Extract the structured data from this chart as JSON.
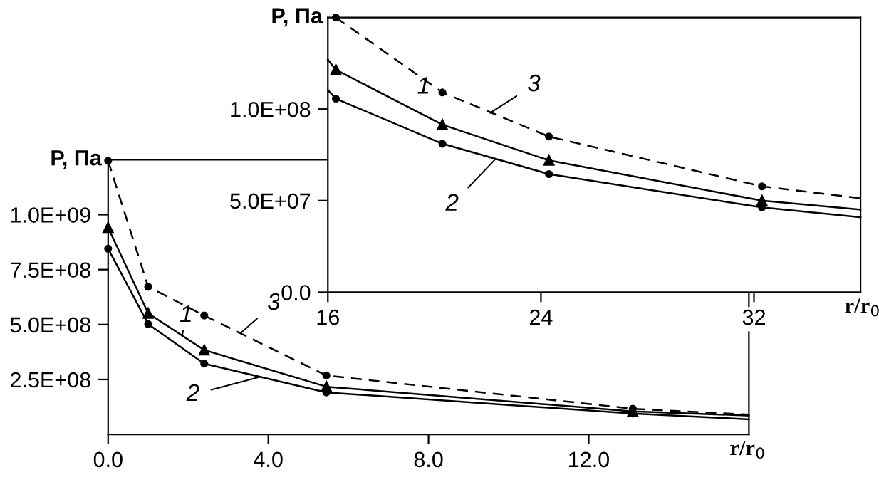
{
  "chart_data": [
    {
      "type": "line",
      "ylabel": "P, Па",
      "xlabel": "r/r$_{0}$",
      "x": [
        0,
        1,
        2.4,
        5.45,
        13.1,
        16
      ],
      "xlim": [
        0,
        16
      ],
      "xticks": [
        {
          "value": 0,
          "label": "0.0"
        },
        {
          "value": 4,
          "label": "4.0"
        },
        {
          "value": 8,
          "label": "8.0"
        },
        {
          "value": 12,
          "label": "12.0"
        }
      ],
      "ylim": [
        0,
        1250000000
      ],
      "yticks": [
        {
          "value": 250000000,
          "label": "2.5E+08"
        },
        {
          "value": 500000000,
          "label": "5.0E+08"
        },
        {
          "value": 750000000,
          "label": "7.5E+08"
        },
        {
          "value": 1000000000,
          "label": "1.0E+09"
        }
      ],
      "series": [
        {
          "color": "#000000",
          "marker": "circle",
          "line_style": "dashed",
          "values": [
            1245000000,
            672000000,
            541000000,
            268000000,
            117000000,
            90000000
          ]
        },
        {
          "color": "#000000",
          "marker": "triangle",
          "line_style": "solid",
          "values": [
            941000000,
            551000000,
            384000000,
            217000000,
            105000000,
            86000000
          ]
        },
        {
          "color": "#000000",
          "marker": "circle",
          "line_style": "solid",
          "values": [
            845000000,
            502000000,
            322000000,
            191000000,
            95000000,
            69000000
          ]
        }
      ],
      "annotations": [
        {
          "text": "1",
          "x": 1.85,
          "y": 450000000
        },
        {
          "text": "3",
          "x": 3.3,
          "y": 460000000
        },
        {
          "text": "2",
          "x": 3.8,
          "y": 262000000
        }
      ],
      "grid": false,
      "legend": false
    },
    {
      "type": "line",
      "ylabel": "P, Па",
      "xlabel": "r/r$_{0}$",
      "xlim": [
        16,
        36
      ],
      "xticks": [
        16,
        24,
        32
      ],
      "ylim": [
        0,
        150000000
      ],
      "yticks": [
        {
          "value": 0,
          "label": "0.0"
        },
        {
          "value": 50000000,
          "label": "5.0E+07"
        },
        {
          "value": 100000000,
          "label": "1.0E+08"
        }
      ],
      "series": [
        {
          "color": "#000000",
          "marker": "circle",
          "line_style": "dashed",
          "x": [
            16.3,
            20.3,
            24.3,
            32.3,
            36
          ],
          "values": [
            150000000,
            109100000,
            85000000,
            57800000,
            51300000
          ]
        },
        {
          "color": "#000000",
          "marker": "triangle",
          "line_style": "solid",
          "x": [
            16,
            16.3,
            20.3,
            24.3,
            32.3,
            36
          ],
          "values": [
            127000000,
            121500000,
            91500000,
            72000000,
            50000000,
            45100000
          ]
        },
        {
          "color": "#000000",
          "marker": "circle",
          "line_style": "solid",
          "x": [
            16,
            16.3,
            20.3,
            24.3,
            32.3,
            36
          ],
          "values": [
            110400000,
            105700000,
            81100000,
            64500000,
            46300000,
            40900000
          ]
        }
      ],
      "annotations": [
        {
          "text": "1",
          "x": 19.0,
          "y": 101000000
        },
        {
          "text": "3",
          "x": 22.1,
          "y": 98000000
        },
        {
          "text": "2",
          "x": 22.3,
          "y": 72800000
        }
      ],
      "grid": false,
      "legend": false
    }
  ]
}
